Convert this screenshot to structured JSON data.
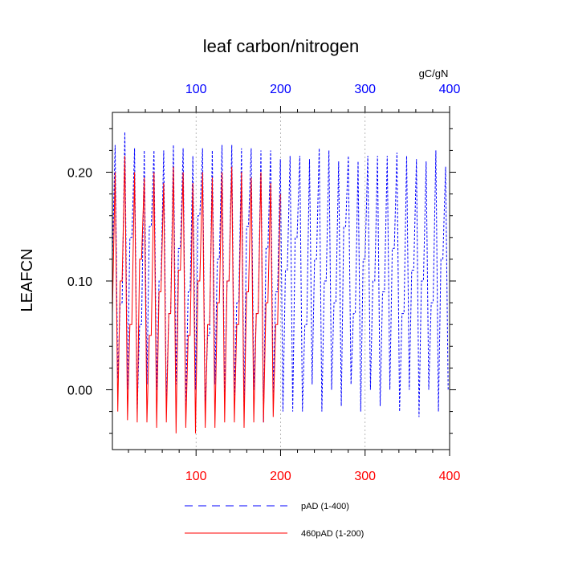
{
  "chart_data": {
    "type": "line",
    "title": "leaf carbon/nitrogen",
    "ylabel": "LEAFCN",
    "units": "gC/gN",
    "grid": "vertical dotted at top-axis ticks",
    "legend_position": "bottom",
    "ylim": [
      -0.055,
      0.255
    ],
    "y_ticks": [
      0.0,
      0.1,
      0.2
    ],
    "y_tick_labels": [
      "0.00",
      "0.10",
      "0.20"
    ],
    "bottom_axis": {
      "range": [
        1,
        400
      ],
      "ticks": [
        100,
        200,
        300,
        400
      ],
      "tick_labels": [
        "100",
        "200",
        "300",
        "400"
      ],
      "color": "#ff0000"
    },
    "top_axis": {
      "range": [
        1,
        400
      ],
      "ticks": [
        100,
        200,
        300,
        400
      ],
      "tick_labels": [
        "100",
        "200",
        "300",
        "400"
      ],
      "color": "#0000ff"
    },
    "series": [
      {
        "name": "pAD (1-400)",
        "color": "#0000ff",
        "style": "dashed",
        "x_range": [
          1,
          400
        ],
        "period": 11.5,
        "peaks": [
          0.225,
          0.237,
          0.222,
          0.22,
          0.22,
          0.22,
          0.225,
          0.222,
          0.215,
          0.222,
          0.22,
          0.225,
          0.225,
          0.222,
          0.222,
          0.22,
          0.22,
          0.212,
          0.215,
          0.215,
          0.212,
          0.222,
          0.22,
          0.21,
          0.215,
          0.21,
          0.215,
          0.215,
          0.215,
          0.218,
          0.215,
          0.212,
          0.21,
          0.22,
          0.205
        ],
        "troughs": [
          0.01,
          0.0,
          -0.02,
          0.005,
          0.0,
          -0.015,
          0.005,
          -0.015,
          0.0,
          -0.02,
          0.005,
          -0.01,
          -0.005,
          -0.02,
          0.0,
          -0.03,
          -0.005,
          -0.02,
          -0.02,
          -0.02,
          0.005,
          -0.02,
          0.0,
          -0.015,
          0.005,
          -0.02,
          0.0,
          -0.015,
          0.0,
          -0.02,
          0.0,
          -0.025,
          0.0,
          -0.02,
          0.0
        ],
        "mids": [
          0.12,
          0.08,
          0.14,
          0.06,
          0.15,
          0.1,
          0.07,
          0.13,
          0.09,
          0.16,
          0.05,
          0.12,
          0.1,
          0.08,
          0.15,
          0.07,
          0.13,
          0.09,
          0.11,
          0.14,
          0.06,
          0.12,
          0.1,
          0.08,
          0.15,
          0.07,
          0.12,
          0.1,
          0.09,
          0.13,
          0.07,
          0.11,
          0.1,
          0.08,
          0.12
        ]
      },
      {
        "name": "460pAD (1-200)",
        "color": "#ff0000",
        "style": "solid",
        "x_range": [
          1,
          200
        ],
        "period": 11.5,
        "peaks": [
          0.2,
          0.215,
          0.2,
          0.195,
          0.2,
          0.19,
          0.205,
          0.2,
          0.19,
          0.2,
          0.195,
          0.2,
          0.205,
          0.2,
          0.195,
          0.2,
          0.19,
          0.18
        ],
        "troughs": [
          -0.02,
          -0.028,
          -0.03,
          -0.03,
          -0.035,
          -0.03,
          -0.04,
          -0.035,
          -0.04,
          -0.035,
          -0.035,
          -0.03,
          -0.03,
          -0.035,
          -0.03,
          -0.03,
          -0.025,
          -0.02
        ],
        "mids": [
          0.07,
          0.1,
          0.06,
          0.12,
          0.05,
          0.09,
          0.07,
          0.11,
          0.05,
          0.1,
          0.06,
          0.08,
          0.1,
          0.06,
          0.09,
          0.07,
          0.08,
          0.06
        ]
      }
    ]
  }
}
